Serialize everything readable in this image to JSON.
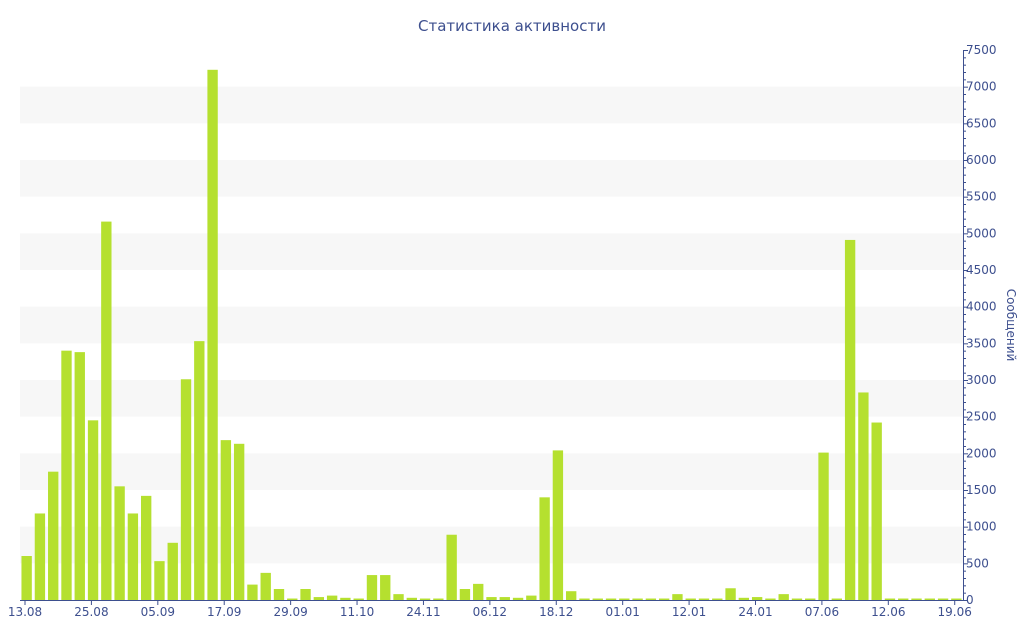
{
  "chart_data": {
    "type": "bar",
    "title": "Статистика активности",
    "ylabel": "Сообщений",
    "xlabel": "",
    "ylim": [
      0,
      7500
    ],
    "yticks": [
      0,
      500,
      1000,
      1500,
      2000,
      2500,
      3000,
      3500,
      4000,
      4500,
      5000,
      5500,
      6000,
      6500,
      7000,
      7500
    ],
    "y_axis_position": "right",
    "grid": "alternating horizontal bands",
    "x_tick_labels": [
      "13.08",
      "25.08",
      "05.09",
      "17.09",
      "29.09",
      "11.10",
      "24.11",
      "06.12",
      "18.12",
      "01.01",
      "12.01",
      "24.01",
      "07.06",
      "12.06",
      "19.06"
    ],
    "x_tick_index": [
      0,
      5,
      10,
      15,
      20,
      25,
      30,
      35,
      40,
      45,
      50,
      55,
      60,
      65,
      70
    ],
    "bar_color": "#b5e02f",
    "values": [
      600,
      1180,
      1750,
      3400,
      3380,
      2450,
      5160,
      1550,
      1180,
      1420,
      530,
      780,
      3010,
      3530,
      7230,
      2180,
      2130,
      210,
      370,
      150,
      20,
      150,
      40,
      60,
      30,
      20,
      340,
      340,
      80,
      30,
      20,
      20,
      890,
      150,
      220,
      40,
      40,
      30,
      60,
      1400,
      2040,
      120,
      20,
      20,
      20,
      20,
      20,
      20,
      20,
      80,
      20,
      20,
      20,
      160,
      30,
      40,
      20,
      80,
      20,
      20,
      2010,
      20,
      4910,
      2830,
      2420,
      20,
      20,
      20,
      20,
      20,
      20
    ]
  }
}
